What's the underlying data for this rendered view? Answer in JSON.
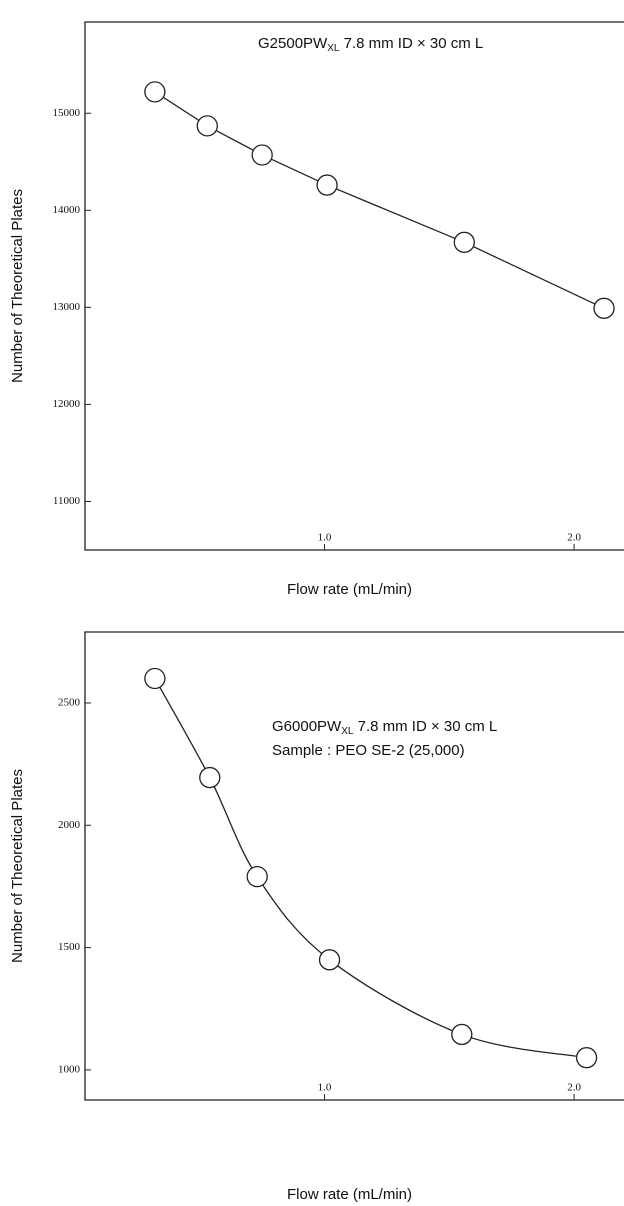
{
  "chart_data": [
    {
      "type": "line",
      "smooth": false,
      "color": "#222",
      "annotation": [
        {
          "main": "G2500PW",
          "sub": "XL",
          "rest": " 7.8 mm ID × 30 cm L"
        }
      ],
      "x_label": "Flow rate (mL/min)",
      "y_label": "Number of Theoretical Plates",
      "x": [
        0.32,
        0.53,
        0.75,
        1.01,
        1.56,
        2.12
      ],
      "values": [
        15220,
        14870,
        14570,
        14260,
        13670,
        12990
      ],
      "xlim": [
        0.04,
        2.2
      ],
      "ylim": [
        10500,
        15940
      ],
      "xticks": [
        {
          "value": 1,
          "label": "1.0"
        },
        {
          "value": 2,
          "label": "2.0"
        }
      ],
      "yticks": [
        11000,
        12000,
        13000,
        14000,
        15000
      ]
    },
    {
      "type": "line",
      "smooth": true,
      "color": "#222",
      "annotation": [
        {
          "main": "G6000PW",
          "sub": "XL",
          "rest": " 7.8 mm ID × 30 cm L"
        },
        {
          "main": "Sample : PEO SE-2 (25,000)"
        }
      ],
      "x_label": "Flow rate (mL/min)",
      "y_label": "Number of Theoretical Plates",
      "x": [
        0.32,
        0.54,
        0.73,
        1.02,
        1.55,
        2.05
      ],
      "values": [
        2600,
        2195,
        1790,
        1450,
        1145,
        1050
      ],
      "xlim": [
        0.04,
        2.2
      ],
      "ylim": [
        877,
        2790
      ],
      "xticks": [
        {
          "value": 1,
          "label": "1.0"
        },
        {
          "value": 2,
          "label": "2.0"
        }
      ],
      "yticks": [
        1000,
        1500,
        2000,
        2500
      ]
    }
  ]
}
